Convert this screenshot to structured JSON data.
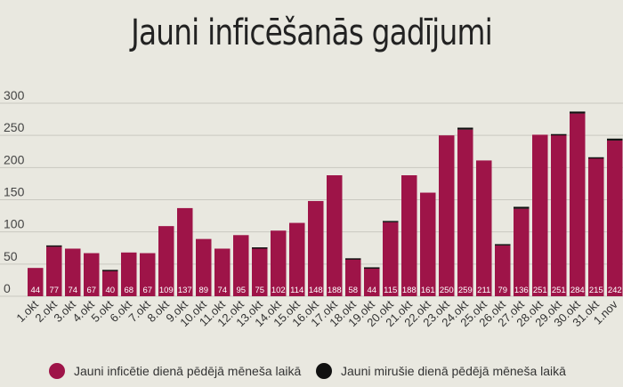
{
  "chart_data": {
    "type": "bar",
    "title": "Jauni inficēšanās gadījumi",
    "xlabel": "",
    "ylabel": "",
    "ylim": [
      0,
      300
    ],
    "yticks": [
      0,
      50,
      100,
      150,
      200,
      250,
      300
    ],
    "grid": true,
    "stacked": true,
    "legend_position": "bottom",
    "categories": [
      "1.okt",
      "2.okt",
      "3.okt",
      "4.okt",
      "5.okt",
      "6.okt",
      "7.okt",
      "8.okt",
      "9.okt",
      "10.okt",
      "11.okt",
      "12.okt",
      "13.okt",
      "14.okt",
      "15.okt",
      "16.okt",
      "17.okt",
      "18.okt",
      "19.okt",
      "20.okt",
      "21.okt",
      "22.okt",
      "23.okt",
      "24.okt",
      "25.okt",
      "26.okt",
      "27.okt",
      "28.okt",
      "29.okt",
      "30.okt",
      "31.okt",
      "1.nov"
    ],
    "series": [
      {
        "name": "Jauni inficētie dienā pēdējā mēneša laikā",
        "color": "#9e1448",
        "values": [
          44,
          77,
          74,
          67,
          40,
          68,
          67,
          109,
          137,
          89,
          74,
          95,
          75,
          102,
          114,
          148,
          188,
          58,
          44,
          115,
          188,
          161,
          250,
          259,
          211,
          79,
          136,
          251,
          251,
          284,
          215,
          242
        ]
      },
      {
        "name": "Jauni mirušie dienā pēdējā mēneša laikā",
        "color": "#111111",
        "values": [
          0,
          2,
          0,
          0,
          1,
          0,
          0,
          0,
          0,
          0,
          0,
          0,
          1,
          0,
          0,
          0,
          0,
          1,
          1,
          2,
          0,
          0,
          0,
          3,
          0,
          2,
          3,
          0,
          1,
          3,
          1,
          3
        ]
      }
    ]
  }
}
